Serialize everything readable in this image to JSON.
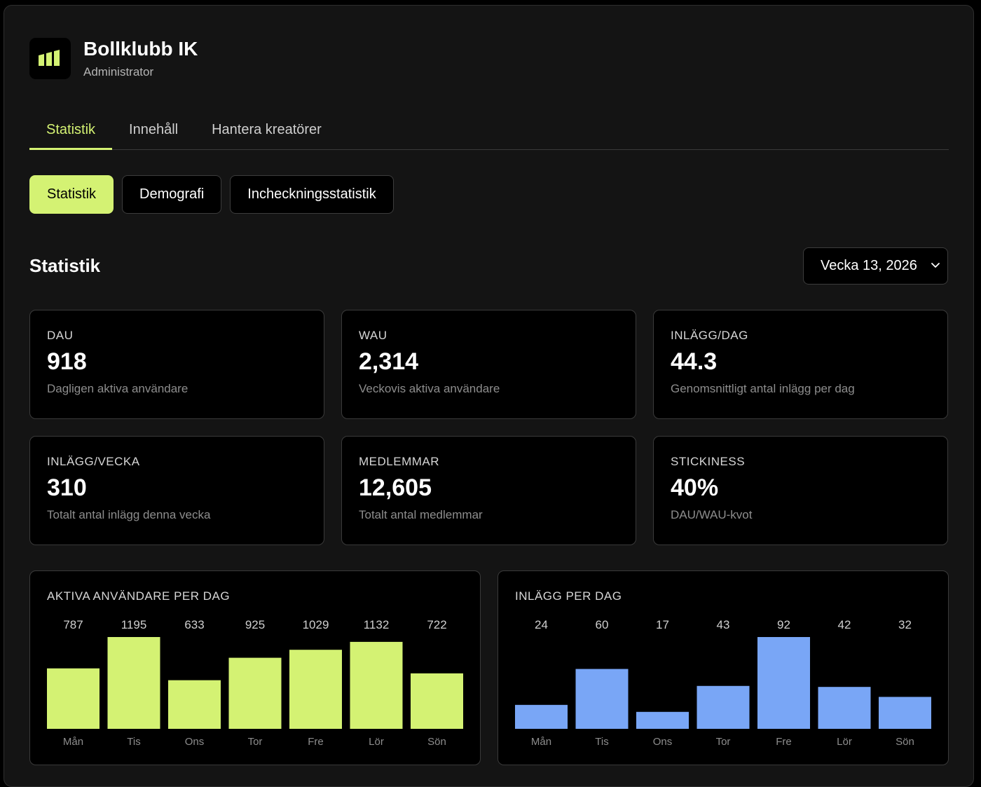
{
  "header": {
    "org_name": "Bollklubb IK",
    "role": "Administrator",
    "logo_icon": "chart-columns-icon",
    "accent": "#d4f273"
  },
  "tabs": [
    {
      "label": "Statistik",
      "active": true
    },
    {
      "label": "Innehåll",
      "active": false
    },
    {
      "label": "Hantera kreatörer",
      "active": false
    }
  ],
  "subtabs": [
    {
      "label": "Statistik",
      "active": true
    },
    {
      "label": "Demografi",
      "active": false
    },
    {
      "label": "Incheckningsstatistik",
      "active": false
    }
  ],
  "section": {
    "title": "Statistik",
    "week_value": "Vecka 13, 2026"
  },
  "cards": [
    {
      "label": "DAU",
      "value": "918",
      "desc": "Dagligen aktiva användare"
    },
    {
      "label": "WAU",
      "value": "2,314",
      "desc": "Veckovis aktiva användare"
    },
    {
      "label": "INLÄGG/DAG",
      "value": "44.3",
      "desc": "Genomsnittligt antal inlägg per dag"
    },
    {
      "label": "INLÄGG/VECKA",
      "value": "310",
      "desc": "Totalt antal inlägg denna vecka"
    },
    {
      "label": "MEDLEMMAR",
      "value": "12,605",
      "desc": "Totalt antal medlemmar"
    },
    {
      "label": "STICKINESS",
      "value": "40%",
      "desc": "DAU/WAU-kvot"
    }
  ],
  "chart_data": [
    {
      "type": "bar",
      "title": "AKTIVA ANVÄNDARE PER DAG",
      "categories": [
        "Mån",
        "Tis",
        "Ons",
        "Tor",
        "Fre",
        "Lör",
        "Sön"
      ],
      "values": [
        787,
        1195,
        633,
        925,
        1029,
        1132,
        722
      ],
      "color": "#d4f273"
    },
    {
      "type": "bar",
      "title": "INLÄGG PER DAG",
      "categories": [
        "Mån",
        "Tis",
        "Ons",
        "Tor",
        "Fre",
        "Lör",
        "Sön"
      ],
      "values": [
        24,
        60,
        17,
        43,
        92,
        42,
        32
      ],
      "color": "#79a6f6"
    }
  ]
}
